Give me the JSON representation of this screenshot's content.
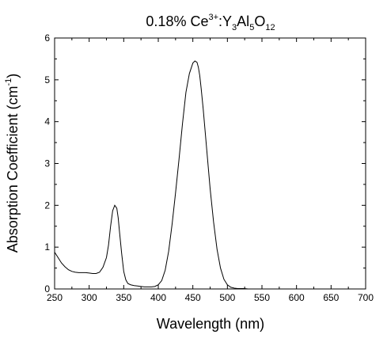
{
  "chart_data": {
    "type": "line",
    "title": {
      "prefix": "0.18% Ce",
      "ce_sup": "3+",
      "mid": ":Y",
      "y_sub": "3",
      "al": "Al",
      "al_sub": "5",
      "o": "O",
      "o_sub": "12"
    },
    "xlabel": "Wavelength (nm)",
    "ylabel": {
      "main": "Absorption Coefficient (cm",
      "sup": "-1",
      "close": ")"
    },
    "xlim": [
      250,
      700
    ],
    "ylim": [
      0,
      6
    ],
    "x_ticks": [
      "250",
      "300",
      "350",
      "400",
      "450",
      "500",
      "550",
      "600",
      "650",
      "700"
    ],
    "y_ticks": [
      "0",
      "1",
      "2",
      "3",
      "4",
      "5",
      "6"
    ],
    "grid": false,
    "legend": "none",
    "series": [
      {
        "x": [
          250,
          255,
          260,
          265,
          270,
          275,
          280,
          285,
          290,
          295,
          300,
          305,
          310,
          315,
          320,
          325,
          328,
          331,
          334,
          337,
          340,
          342,
          344,
          347,
          350,
          353,
          356,
          360,
          365,
          370,
          375,
          380,
          385,
          390,
          395,
          400,
          405,
          410,
          415,
          420,
          425,
          430,
          435,
          440,
          445,
          450,
          453,
          456,
          458,
          460,
          462,
          465,
          470,
          475,
          480,
          485,
          490,
          495,
          500,
          505,
          510,
          515,
          520,
          525,
          530,
          540,
          550,
          560,
          570,
          580,
          590,
          600
        ],
        "y": [
          0.88,
          0.75,
          0.62,
          0.53,
          0.46,
          0.42,
          0.4,
          0.39,
          0.39,
          0.39,
          0.38,
          0.37,
          0.37,
          0.4,
          0.52,
          0.75,
          1.05,
          1.5,
          1.87,
          2.0,
          1.93,
          1.7,
          1.35,
          0.85,
          0.42,
          0.22,
          0.13,
          0.1,
          0.08,
          0.07,
          0.06,
          0.05,
          0.05,
          0.05,
          0.06,
          0.1,
          0.2,
          0.45,
          0.9,
          1.55,
          2.3,
          3.1,
          3.95,
          4.7,
          5.15,
          5.4,
          5.45,
          5.42,
          5.3,
          5.1,
          4.8,
          4.3,
          3.35,
          2.4,
          1.6,
          0.95,
          0.5,
          0.23,
          0.1,
          0.04,
          0.02,
          0.01,
          0.01,
          0.01,
          0.0,
          0.0,
          0.0,
          0.0,
          0.0,
          0.0,
          0.0,
          0.0
        ]
      }
    ]
  }
}
